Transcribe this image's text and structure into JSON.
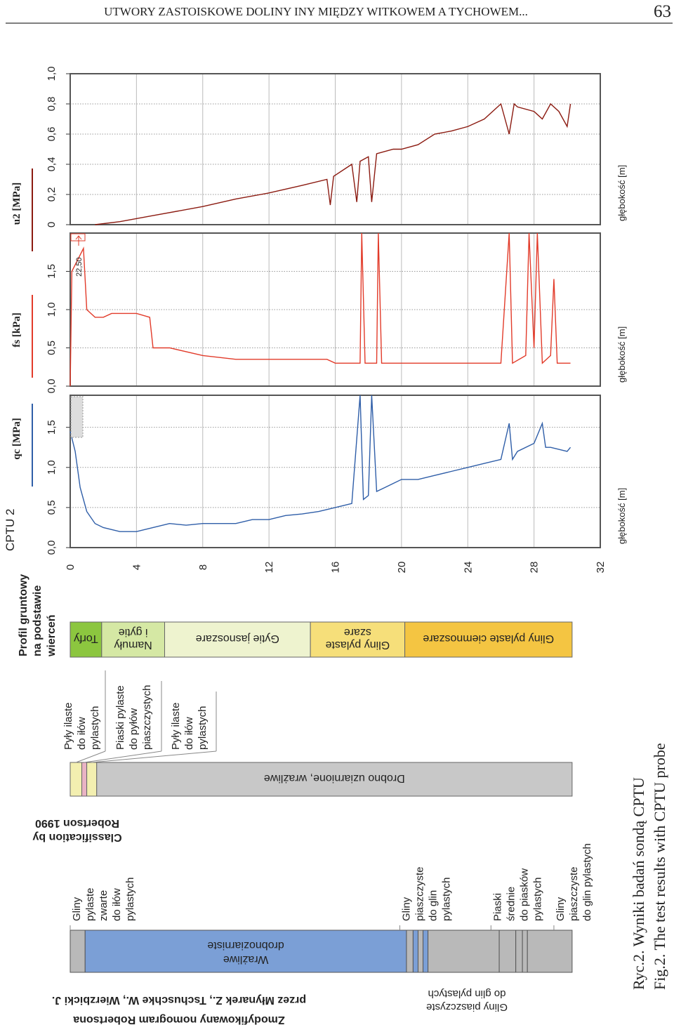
{
  "header": {
    "title": "UTWORY ZASTOISKOWE DOLINY INY MIĘDZY WITKOWEM A TYCHOWEM...",
    "page": "63"
  },
  "figure": {
    "label": "CPTU 2"
  },
  "chart_data": [
    {
      "type": "line",
      "y_label": "qc [MPa]",
      "x_label": "głębokość [m]",
      "color": "#2f5ea8",
      "xlim": [
        0,
        32
      ],
      "xticks": [
        0,
        4,
        8,
        12,
        16,
        20,
        24,
        28,
        32
      ],
      "ylim": [
        0,
        1.9
      ],
      "yticks": [
        {
          "value": 0,
          "label": "0,0"
        },
        {
          "value": 0.5,
          "label": "0,5"
        },
        {
          "value": 1.0,
          "label": "1,0"
        },
        {
          "value": 1.5,
          "label": "1,5"
        }
      ],
      "x": [
        0,
        0.3,
        0.6,
        1,
        1.5,
        2,
        3,
        4,
        5,
        6,
        7,
        8,
        9,
        10,
        11,
        12,
        13,
        14,
        15,
        16,
        17,
        17.5,
        17.7,
        18,
        18.2,
        18.5,
        19,
        19.5,
        20,
        21,
        22,
        23,
        24,
        25,
        26,
        26.5,
        26.7,
        27,
        28,
        28.5,
        28.7,
        29,
        30,
        30.2
      ],
      "values": [
        1.45,
        1.2,
        0.75,
        0.45,
        0.3,
        0.25,
        0.2,
        0.2,
        0.25,
        0.3,
        0.28,
        0.3,
        0.3,
        0.3,
        0.35,
        0.35,
        0.4,
        0.42,
        0.45,
        0.5,
        0.55,
        1.9,
        0.6,
        0.65,
        1.9,
        0.7,
        0.75,
        0.8,
        0.85,
        0.85,
        0.9,
        0.95,
        1.0,
        1.05,
        1.1,
        1.55,
        1.1,
        1.2,
        1.3,
        1.55,
        1.25,
        1.25,
        1.2,
        1.25
      ]
    },
    {
      "type": "line",
      "y_label": "fs [kPa]",
      "x_label": "głębokość [m]",
      "color": "#e23b2a",
      "annotation": "22,50",
      "xlim": [
        0,
        32
      ],
      "xticks": [
        0,
        4,
        8,
        12,
        16,
        20,
        24,
        28,
        32
      ],
      "ylim": [
        0,
        2.0
      ],
      "yticks": [
        {
          "value": 0,
          "label": "0,0"
        },
        {
          "value": 0.5,
          "label": "0,5"
        },
        {
          "value": 1.0,
          "label": "1,0"
        },
        {
          "value": 1.5,
          "label": "1,5"
        }
      ],
      "x": [
        0,
        0.1,
        0.8,
        1,
        1.5,
        2,
        2.5,
        4,
        4.8,
        5,
        6,
        8,
        10,
        12,
        15.5,
        16,
        17.5,
        17.6,
        17.8,
        18.5,
        18.6,
        18.8,
        26,
        26.5,
        26.7,
        27.5,
        27.7,
        28,
        28.2,
        28.5,
        29,
        29.2,
        29.4,
        30.2
      ],
      "values": [
        0,
        1.5,
        1.8,
        1.0,
        0.9,
        0.9,
        0.95,
        0.95,
        0.9,
        0.5,
        0.5,
        0.4,
        0.35,
        0.35,
        0.35,
        0.3,
        0.3,
        2.0,
        0.3,
        0.3,
        2.0,
        0.3,
        0.3,
        2.0,
        0.3,
        0.4,
        2.0,
        0.5,
        2.0,
        0.3,
        0.4,
        1.4,
        0.3,
        0.3
      ]
    },
    {
      "type": "line",
      "y_label": "u2 [MPa]",
      "x_label": "głębokość [m]",
      "color": "#8b1a10",
      "xlim": [
        0,
        32
      ],
      "xticks": [
        0,
        4,
        8,
        12,
        16,
        20,
        24,
        28,
        32
      ],
      "ylim": [
        0,
        1.0
      ],
      "yticks": [
        0,
        {
          "value": 0.2,
          "label": "0,2"
        },
        {
          "value": 0.4,
          "label": "0,4"
        },
        {
          "value": 0.6,
          "label": "0,6"
        },
        {
          "value": 0.8,
          "label": "0,8"
        },
        {
          "value": 1.0,
          "label": "1,0"
        }
      ],
      "x": [
        1.5,
        3,
        5,
        8,
        10,
        12,
        14,
        15.5,
        15.7,
        15.9,
        17,
        17.3,
        17.5,
        18,
        18.2,
        18.5,
        19.5,
        20,
        21,
        22,
        23,
        24,
        25,
        26,
        26.5,
        26.8,
        27,
        28,
        28.5,
        29,
        29.5,
        30,
        30.2
      ],
      "values": [
        0,
        0.02,
        0.06,
        0.12,
        0.17,
        0.21,
        0.26,
        0.3,
        0.13,
        0.32,
        0.4,
        0.15,
        0.42,
        0.45,
        0.15,
        0.47,
        0.5,
        0.5,
        0.53,
        0.6,
        0.62,
        0.65,
        0.7,
        0.8,
        0.6,
        0.8,
        0.78,
        0.75,
        0.7,
        0.8,
        0.75,
        0.65,
        0.8
      ]
    }
  ],
  "profile": {
    "title": [
      "Profil gruntowy",
      "na podstawie",
      "wierceń"
    ],
    "layers": [
      {
        "lines": [
          "Torfy"
        ],
        "from": 0,
        "to": 1.9,
        "color": "#8cc63f"
      },
      {
        "lines": [
          "Namuły",
          "i gytie"
        ],
        "from": 1.9,
        "to": 5.7,
        "color": "#d5e8a4"
      },
      {
        "lines": [
          "Gytie  jasnoszare"
        ],
        "from": 5.7,
        "to": 14.5,
        "color": "#eef3cf"
      },
      {
        "lines": [
          "Gliny pylaste",
          "szare"
        ],
        "from": 14.5,
        "to": 20.2,
        "color": "#f6df7a"
      },
      {
        "lines": [
          "Gliny pylaste ciemnoszare"
        ],
        "from": 20.2,
        "to": 30.3,
        "color": "#f4c542"
      }
    ]
  },
  "robertson": {
    "title": [
      "Classification by",
      "Robertson 1990"
    ],
    "segments": [
      {
        "lines": [
          "Pyły ilaste",
          "do iłów",
          "pylastych"
        ],
        "from": 0,
        "to": 0.7,
        "color": "#f3efb0"
      },
      {
        "lines": [
          "Piaski pylaste",
          "do pyłów",
          "piaszczystych"
        ],
        "from": 0.7,
        "to": 1.0,
        "color": "#e9b3c4"
      },
      {
        "lines": [
          "Pyły ilaste",
          "do iłów",
          "pylastych"
        ],
        "from": 1.0,
        "to": 1.6,
        "color": "#f3efb0"
      },
      {
        "lines": [
          "Drobno uziarnione, wrażliwe"
        ],
        "from": 1.6,
        "to": 30.3,
        "color": "#c8c8c8"
      }
    ]
  },
  "nomogram": {
    "title": [
      "Zmodyfikowany nomogram Robertsona",
      "przez Młynarek Z., Tschuschke W., Wierzbicki J."
    ],
    "segments": [
      {
        "from": 0,
        "to": 0.9,
        "color": "#b9b9b9"
      },
      {
        "lines": [
          "Wrażliwe",
          "drobnoziarniste"
        ],
        "from": 0.9,
        "to": 20.3,
        "color": "#7b9fd6"
      },
      {
        "from": 20.3,
        "to": 20.7,
        "color": "#b9b9b9"
      },
      {
        "from": 20.7,
        "to": 21.0,
        "color": "#7b9fd6"
      },
      {
        "from": 21.0,
        "to": 21.3,
        "color": "#b9b9b9"
      },
      {
        "from": 21.3,
        "to": 21.6,
        "color": "#7b9fd6"
      },
      {
        "from": 21.6,
        "to": 25.9,
        "color": "#b9b9b9"
      },
      {
        "from": 25.9,
        "to": 26.9,
        "color": "#b9b9b9"
      },
      {
        "from": 26.9,
        "to": 27.3,
        "color": "#b9b9b9"
      },
      {
        "from": 27.3,
        "to": 27.6,
        "color": "#b9b9b9"
      },
      {
        "from": 27.6,
        "to": 30.3,
        "color": "#b9b9b9"
      }
    ],
    "labels": [
      {
        "lines": [
          "Gliny",
          "pylaste",
          "zwarte",
          "do iłów",
          "pylastych"
        ],
        "at": 0
      },
      {
        "lines": [
          "Gliny",
          "piaszczyste",
          "do glin",
          "pylastych"
        ],
        "at": 19.9
      },
      {
        "lines": [
          "Piaski",
          "średnie",
          "do piasków",
          "pylastych"
        ],
        "at": 25.4
      },
      {
        "lines": [
          "Gliny",
          "piaszczyste",
          "do glin pylastych"
        ],
        "at": 29.2
      }
    ],
    "below": [
      "Gliny piaszczyste",
      "do glin pylastych"
    ]
  },
  "caption": [
    "Ryc.2. Wyniki badań sondą CPTU",
    "Fig.2. The test results with CPTU probe"
  ]
}
